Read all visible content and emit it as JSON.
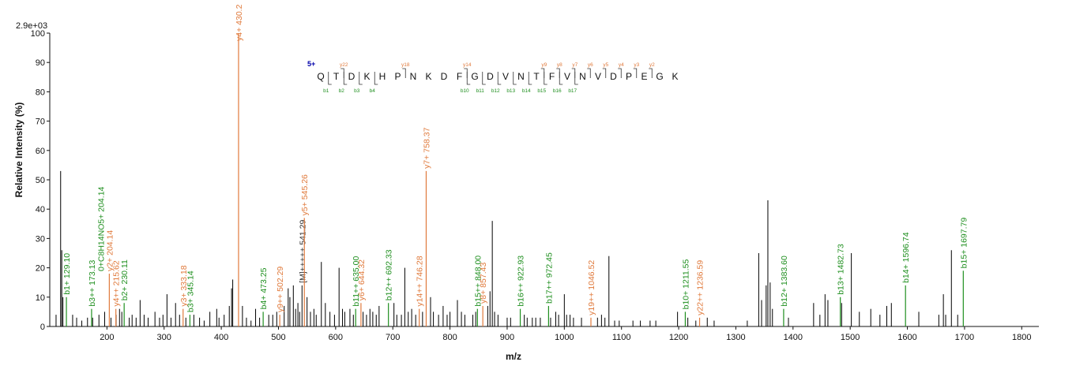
{
  "chart_data": {
    "type": "bar",
    "ymax_label": "2.9e+03",
    "xlabel": "m/z",
    "ylabel": "Relative   Intensity (%)",
    "xlim": [
      100,
      1830
    ],
    "ylim": [
      0,
      100
    ],
    "x_ticks": [
      200,
      300,
      400,
      500,
      600,
      700,
      800,
      900,
      1000,
      1100,
      1200,
      1300,
      1400,
      1500,
      1600,
      1700,
      1800
    ],
    "y_ticks": [
      0,
      10,
      20,
      30,
      40,
      50,
      60,
      70,
      80,
      90,
      100
    ],
    "colors": {
      "b_ion": "#1f8f1f",
      "y_ion": "#e07a3c",
      "unassigned": "#000000",
      "precursor": "#333333",
      "charge": "#0000aa"
    },
    "peaks": [
      {
        "mz": 111,
        "i": 4
      },
      {
        "mz": 119,
        "i": 53
      },
      {
        "mz": 121,
        "i": 26
      },
      {
        "mz": 123,
        "i": 10
      },
      {
        "mz": 140,
        "i": 4
      },
      {
        "mz": 147,
        "i": 3
      },
      {
        "mz": 156,
        "i": 2
      },
      {
        "mz": 166,
        "i": 3
      },
      {
        "mz": 175,
        "i": 3
      },
      {
        "mz": 186,
        "i": 4
      },
      {
        "mz": 196,
        "i": 5
      },
      {
        "mz": 207,
        "i": 3
      },
      {
        "mz": 216,
        "i": 4
      },
      {
        "mz": 222,
        "i": 6
      },
      {
        "mz": 226,
        "i": 5
      },
      {
        "mz": 239,
        "i": 3
      },
      {
        "mz": 244,
        "i": 4
      },
      {
        "mz": 251,
        "i": 3
      },
      {
        "mz": 258,
        "i": 9
      },
      {
        "mz": 265,
        "i": 4
      },
      {
        "mz": 272,
        "i": 3
      },
      {
        "mz": 284,
        "i": 5
      },
      {
        "mz": 292,
        "i": 3
      },
      {
        "mz": 298,
        "i": 4
      },
      {
        "mz": 305,
        "i": 11
      },
      {
        "mz": 312,
        "i": 3
      },
      {
        "mz": 320,
        "i": 8
      },
      {
        "mz": 327,
        "i": 4
      },
      {
        "mz": 338,
        "i": 3
      },
      {
        "mz": 352,
        "i": 4
      },
      {
        "mz": 362,
        "i": 3
      },
      {
        "mz": 370,
        "i": 2
      },
      {
        "mz": 380,
        "i": 5
      },
      {
        "mz": 392,
        "i": 6
      },
      {
        "mz": 396,
        "i": 3
      },
      {
        "mz": 405,
        "i": 4
      },
      {
        "mz": 414,
        "i": 7
      },
      {
        "mz": 418,
        "i": 13
      },
      {
        "mz": 420,
        "i": 16
      },
      {
        "mz": 437,
        "i": 7
      },
      {
        "mz": 444,
        "i": 3
      },
      {
        "mz": 452,
        "i": 2
      },
      {
        "mz": 460,
        "i": 6
      },
      {
        "mz": 467,
        "i": 3
      },
      {
        "mz": 483,
        "i": 4
      },
      {
        "mz": 490,
        "i": 4
      },
      {
        "mz": 497,
        "i": 5
      },
      {
        "mz": 510,
        "i": 7
      },
      {
        "mz": 517,
        "i": 13
      },
      {
        "mz": 520,
        "i": 10
      },
      {
        "mz": 526,
        "i": 14
      },
      {
        "mz": 530,
        "i": 6
      },
      {
        "mz": 534,
        "i": 8
      },
      {
        "mz": 537,
        "i": 5
      },
      {
        "mz": 550,
        "i": 10
      },
      {
        "mz": 556,
        "i": 5
      },
      {
        "mz": 562,
        "i": 6
      },
      {
        "mz": 566,
        "i": 4
      },
      {
        "mz": 575,
        "i": 22
      },
      {
        "mz": 582,
        "i": 8
      },
      {
        "mz": 590,
        "i": 5
      },
      {
        "mz": 598,
        "i": 4
      },
      {
        "mz": 606,
        "i": 20
      },
      {
        "mz": 612,
        "i": 6
      },
      {
        "mz": 616,
        "i": 5
      },
      {
        "mz": 625,
        "i": 6
      },
      {
        "mz": 631,
        "i": 4
      },
      {
        "mz": 648,
        "i": 5
      },
      {
        "mz": 654,
        "i": 4
      },
      {
        "mz": 660,
        "i": 6
      },
      {
        "mz": 665,
        "i": 5
      },
      {
        "mz": 671,
        "i": 4
      },
      {
        "mz": 676,
        "i": 7
      },
      {
        "mz": 702,
        "i": 8
      },
      {
        "mz": 707,
        "i": 4
      },
      {
        "mz": 715,
        "i": 4
      },
      {
        "mz": 721,
        "i": 20
      },
      {
        "mz": 727,
        "i": 5
      },
      {
        "mz": 733,
        "i": 6
      },
      {
        "mz": 740,
        "i": 4
      },
      {
        "mz": 752,
        "i": 5
      },
      {
        "mz": 766,
        "i": 10
      },
      {
        "mz": 771,
        "i": 5
      },
      {
        "mz": 780,
        "i": 4
      },
      {
        "mz": 788,
        "i": 7
      },
      {
        "mz": 795,
        "i": 4
      },
      {
        "mz": 800,
        "i": 5
      },
      {
        "mz": 813,
        "i": 9
      },
      {
        "mz": 820,
        "i": 5
      },
      {
        "mz": 826,
        "i": 4
      },
      {
        "mz": 840,
        "i": 4
      },
      {
        "mz": 845,
        "i": 5
      },
      {
        "mz": 866,
        "i": 7
      },
      {
        "mz": 870,
        "i": 12
      },
      {
        "mz": 874,
        "i": 36
      },
      {
        "mz": 878,
        "i": 5
      },
      {
        "mz": 884,
        "i": 4
      },
      {
        "mz": 900,
        "i": 3
      },
      {
        "mz": 906,
        "i": 3
      },
      {
        "mz": 930,
        "i": 4
      },
      {
        "mz": 935,
        "i": 3
      },
      {
        "mz": 944,
        "i": 3
      },
      {
        "mz": 950,
        "i": 3
      },
      {
        "mz": 958,
        "i": 3
      },
      {
        "mz": 976,
        "i": 3
      },
      {
        "mz": 985,
        "i": 5
      },
      {
        "mz": 990,
        "i": 4
      },
      {
        "mz": 1000,
        "i": 11
      },
      {
        "mz": 1004,
        "i": 4
      },
      {
        "mz": 1010,
        "i": 4
      },
      {
        "mz": 1016,
        "i": 3
      },
      {
        "mz": 1030,
        "i": 3
      },
      {
        "mz": 1058,
        "i": 3
      },
      {
        "mz": 1065,
        "i": 4
      },
      {
        "mz": 1071,
        "i": 3
      },
      {
        "mz": 1078,
        "i": 24
      },
      {
        "mz": 1088,
        "i": 2
      },
      {
        "mz": 1096,
        "i": 2
      },
      {
        "mz": 1120,
        "i": 2
      },
      {
        "mz": 1133,
        "i": 2
      },
      {
        "mz": 1150,
        "i": 2
      },
      {
        "mz": 1160,
        "i": 2
      },
      {
        "mz": 1198,
        "i": 5
      },
      {
        "mz": 1216,
        "i": 3
      },
      {
        "mz": 1230,
        "i": 2
      },
      {
        "mz": 1250,
        "i": 3
      },
      {
        "mz": 1262,
        "i": 2
      },
      {
        "mz": 1320,
        "i": 2
      },
      {
        "mz": 1340,
        "i": 25
      },
      {
        "mz": 1345,
        "i": 9
      },
      {
        "mz": 1353,
        "i": 14
      },
      {
        "mz": 1356,
        "i": 43
      },
      {
        "mz": 1360,
        "i": 15
      },
      {
        "mz": 1364,
        "i": 6
      },
      {
        "mz": 1392,
        "i": 3
      },
      {
        "mz": 1436,
        "i": 8
      },
      {
        "mz": 1447,
        "i": 4
      },
      {
        "mz": 1456,
        "i": 11
      },
      {
        "mz": 1461,
        "i": 9
      },
      {
        "mz": 1485,
        "i": 8
      },
      {
        "mz": 1502,
        "i": 25
      },
      {
        "mz": 1516,
        "i": 5
      },
      {
        "mz": 1536,
        "i": 6
      },
      {
        "mz": 1552,
        "i": 4
      },
      {
        "mz": 1564,
        "i": 7
      },
      {
        "mz": 1572,
        "i": 8
      },
      {
        "mz": 1620,
        "i": 5
      },
      {
        "mz": 1655,
        "i": 4
      },
      {
        "mz": 1663,
        "i": 11
      },
      {
        "mz": 1667,
        "i": 4
      },
      {
        "mz": 1677,
        "i": 26
      },
      {
        "mz": 1688,
        "i": 4
      }
    ],
    "annotated_peaks": [
      {
        "mz": 129.1,
        "i": 10,
        "label": "b1+ 129.10",
        "ion": "b"
      },
      {
        "mz": 173.13,
        "i": 6,
        "label": "b3++ 173.13",
        "ion": "b"
      },
      {
        "mz": 204.14,
        "i": 18,
        "label": "y2+ 204.14",
        "ion": "y"
      },
      {
        "mz": 204.14,
        "i": 18,
        "label": "0+C8H14NO5+ 204.14",
        "ion": "b"
      },
      {
        "mz": 215.62,
        "i": 6,
        "label": "y4++ 215.62",
        "ion": "y"
      },
      {
        "mz": 230.11,
        "i": 8,
        "label": "b2+ 230.11",
        "ion": "b"
      },
      {
        "mz": 333.18,
        "i": 6,
        "label": "y3+ 333.18",
        "ion": "y"
      },
      {
        "mz": 345.14,
        "i": 4,
        "label": "b3+ 345.14",
        "ion": "b"
      },
      {
        "mz": 430.2,
        "i": 100,
        "label": "y4+ 430.2",
        "ion": "y"
      },
      {
        "mz": 473.25,
        "i": 5,
        "label": "b4+ 473.25",
        "ion": "b"
      },
      {
        "mz": 502.29,
        "i": 4,
        "label": "y9++ 502.29",
        "ion": "y"
      },
      {
        "mz": 541.29,
        "i": 14,
        "label": "[M]+++++ 541.29",
        "ion": "p"
      },
      {
        "mz": 545.26,
        "i": 37,
        "label": "y5+ 545.26",
        "ion": "y"
      },
      {
        "mz": 635.0,
        "i": 6,
        "label": "b11++ 635.00",
        "ion": "b"
      },
      {
        "mz": 644.32,
        "i": 8,
        "label": "y6+ 644.32",
        "ion": "y"
      },
      {
        "mz": 692.33,
        "i": 8,
        "label": "b12++ 692.33",
        "ion": "b"
      },
      {
        "mz": 746.28,
        "i": 6,
        "label": "y14++ 746.28",
        "ion": "y"
      },
      {
        "mz": 758.37,
        "i": 53,
        "label": "y7+ 758.37",
        "ion": "y"
      },
      {
        "mz": 848.0,
        "i": 6,
        "label": "b15++ 848.00",
        "ion": "b"
      },
      {
        "mz": 857.43,
        "i": 7,
        "label": "y8+ 857.43",
        "ion": "y"
      },
      {
        "mz": 922.93,
        "i": 6,
        "label": "b16++ 922.93",
        "ion": "b"
      },
      {
        "mz": 972.45,
        "i": 7,
        "label": "b17++ 972.45",
        "ion": "b"
      },
      {
        "mz": 1046.52,
        "i": 3,
        "label": "y19++ 1046.52",
        "ion": "y"
      },
      {
        "mz": 1211.55,
        "i": 5,
        "label": "b10+ 1211.55",
        "ion": "b"
      },
      {
        "mz": 1236.59,
        "i": 3,
        "label": "y22++ 1236.59",
        "ion": "y"
      },
      {
        "mz": 1383.6,
        "i": 6,
        "label": "b12+ 1383.60",
        "ion": "b"
      },
      {
        "mz": 1482.73,
        "i": 10,
        "label": "b13+ 1482.73",
        "ion": "b"
      },
      {
        "mz": 1596.74,
        "i": 14,
        "label": "b14+ 1596.74",
        "ion": "b"
      },
      {
        "mz": 1697.79,
        "i": 19,
        "label": "b15+ 1697.79",
        "ion": "b"
      }
    ],
    "sequence": {
      "charge": "5+",
      "residues": [
        "Q",
        "T",
        "D",
        "K",
        "H",
        "P",
        "N",
        "K",
        "D",
        "F",
        "G",
        "D",
        "V",
        "N",
        "T",
        "F",
        "V",
        "N",
        "V",
        "D",
        "P",
        "E",
        "G",
        "K"
      ],
      "y_labels": [
        {
          "after": 2,
          "label": "y22"
        },
        {
          "after": 6,
          "label": "y18"
        },
        {
          "after": 10,
          "label": "y14"
        },
        {
          "after": 15,
          "label": "y9"
        },
        {
          "after": 16,
          "label": "y8"
        },
        {
          "after": 17,
          "label": "y7"
        },
        {
          "after": 18,
          "label": "y6"
        },
        {
          "after": 19,
          "label": "y5"
        },
        {
          "after": 20,
          "label": "y4"
        },
        {
          "after": 21,
          "label": "y3"
        },
        {
          "after": 22,
          "label": "y2"
        }
      ],
      "b_labels": [
        {
          "after": 1,
          "label": "b1"
        },
        {
          "after": 2,
          "label": "b2"
        },
        {
          "after": 3,
          "label": "b3"
        },
        {
          "after": 4,
          "label": "b4"
        },
        {
          "after": 10,
          "label": "b10"
        },
        {
          "after": 11,
          "label": "b11"
        },
        {
          "after": 12,
          "label": "b12"
        },
        {
          "after": 13,
          "label": "b13"
        },
        {
          "after": 14,
          "label": "b14"
        },
        {
          "after": 15,
          "label": "b15"
        },
        {
          "after": 16,
          "label": "b16"
        },
        {
          "after": 17,
          "label": "b17"
        }
      ]
    }
  }
}
